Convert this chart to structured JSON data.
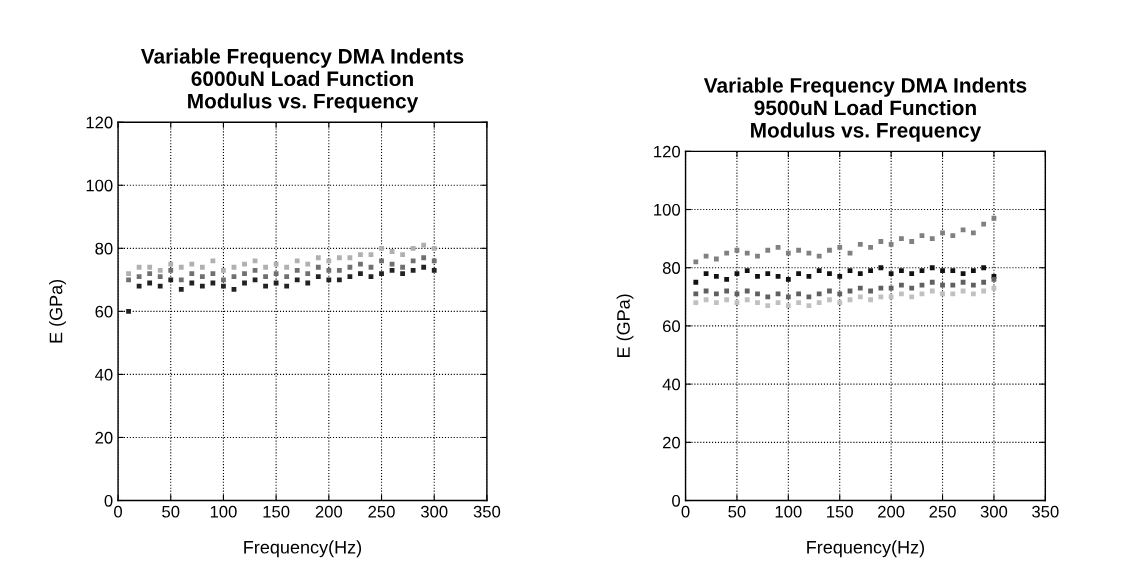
{
  "chart_data": [
    {
      "type": "scatter",
      "title": "Variable Frequency DMA Indents\n6000uN Load Function\nModulus vs. Frequency",
      "xlabel": "Frequency(Hz)",
      "ylabel": "E (GPa)",
      "xlim": [
        0,
        350
      ],
      "xticks": [
        0,
        50,
        100,
        150,
        200,
        250,
        300,
        350
      ],
      "ylim": [
        0,
        120
      ],
      "yticks": [
        0,
        20,
        40,
        60,
        80,
        100,
        120
      ],
      "grid": true,
      "marker": "square",
      "x": [
        10,
        20,
        30,
        40,
        50,
        60,
        70,
        80,
        90,
        100,
        110,
        120,
        130,
        140,
        150,
        160,
        170,
        180,
        190,
        200,
        210,
        220,
        230,
        240,
        250,
        260,
        270,
        280,
        290,
        300
      ],
      "series": [
        {
          "color": "#222222",
          "values": [
            60,
            68,
            69,
            68,
            70,
            67,
            69,
            68,
            69,
            68,
            67,
            69,
            70,
            68,
            69,
            68,
            70,
            69,
            71,
            70,
            70,
            71,
            72,
            71,
            72,
            73,
            72,
            73,
            74,
            73
          ]
        },
        {
          "color": "#707070",
          "values": [
            70,
            71,
            72,
            71,
            73,
            70,
            72,
            71,
            72,
            70,
            71,
            72,
            73,
            71,
            72,
            71,
            73,
            72,
            74,
            73,
            73,
            74,
            75,
            74,
            76,
            75,
            74,
            76,
            77,
            76
          ]
        },
        {
          "color": "#b0b0b0",
          "values": [
            72,
            74,
            74,
            73,
            75,
            74,
            75,
            74,
            76,
            73,
            74,
            75,
            76,
            74,
            75,
            74,
            76,
            75,
            77,
            76,
            77,
            77,
            78,
            78,
            80,
            79,
            78,
            80,
            81,
            80
          ]
        }
      ]
    },
    {
      "type": "scatter",
      "title": "Variable Frequency DMA Indents\n9500uN Load Function\nModulus vs. Frequency",
      "xlabel": "Frequency(Hz)",
      "ylabel": "E (GPa)",
      "xlim": [
        0,
        350
      ],
      "xticks": [
        0,
        50,
        100,
        150,
        200,
        250,
        300,
        350
      ],
      "ylim": [
        0,
        120
      ],
      "yticks": [
        0,
        20,
        40,
        60,
        80,
        100,
        120
      ],
      "grid": true,
      "marker": "square",
      "x": [
        10,
        20,
        30,
        40,
        50,
        60,
        70,
        80,
        90,
        100,
        110,
        120,
        130,
        140,
        150,
        160,
        170,
        180,
        190,
        200,
        210,
        220,
        230,
        240,
        250,
        260,
        270,
        280,
        290,
        300
      ],
      "series": [
        {
          "color": "#808080",
          "values": [
            82,
            84,
            83,
            85,
            86,
            85,
            84,
            86,
            87,
            85,
            86,
            85,
            84,
            86,
            87,
            85,
            88,
            87,
            89,
            88,
            90,
            89,
            91,
            90,
            92,
            91,
            93,
            92,
            95,
            97
          ]
        },
        {
          "color": "#111111",
          "values": [
            75,
            78,
            77,
            76,
            78,
            79,
            77,
            78,
            77,
            76,
            78,
            77,
            79,
            78,
            77,
            79,
            78,
            79,
            80,
            78,
            79,
            78,
            79,
            80,
            79,
            79,
            78,
            79,
            80,
            77
          ]
        },
        {
          "color": "#606060",
          "values": [
            71,
            72,
            71,
            72,
            71,
            72,
            71,
            70,
            71,
            70,
            71,
            70,
            71,
            72,
            71,
            72,
            73,
            72,
            73,
            73,
            74,
            73,
            74,
            75,
            74,
            74,
            75,
            74,
            75,
            76
          ]
        },
        {
          "color": "#c0c0c0",
          "values": [
            68,
            69,
            68,
            69,
            68,
            69,
            68,
            67,
            68,
            67,
            68,
            67,
            68,
            69,
            68,
            69,
            70,
            69,
            70,
            70,
            71,
            70,
            71,
            72,
            71,
            71,
            72,
            71,
            72,
            73
          ]
        }
      ]
    }
  ]
}
